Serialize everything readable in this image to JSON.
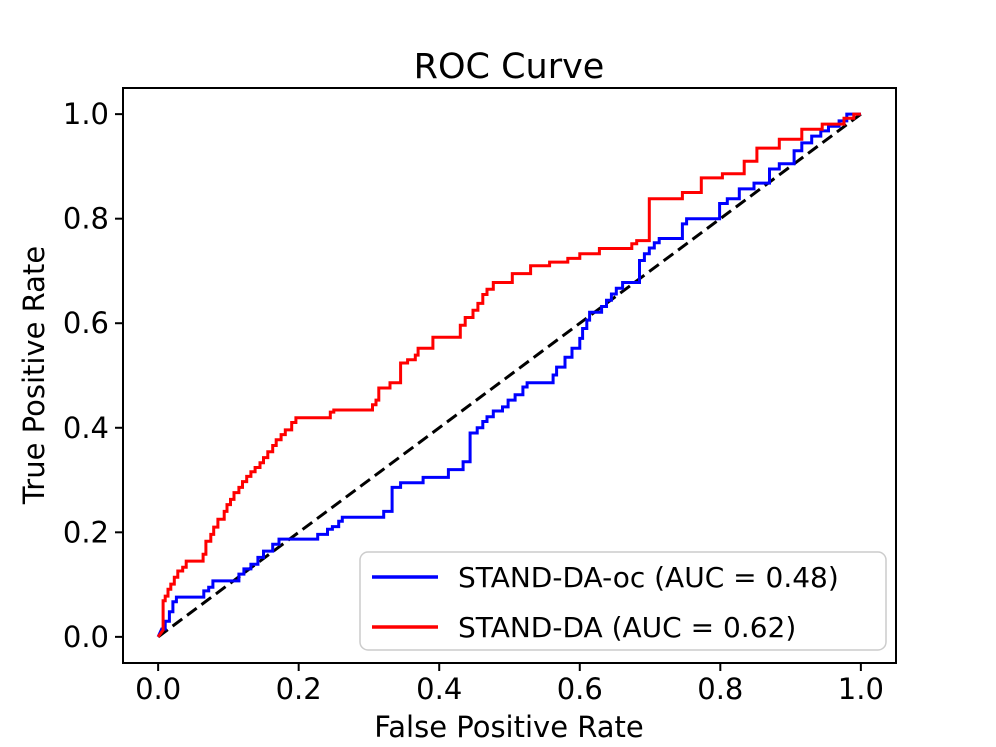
{
  "chart_data": {
    "type": "line",
    "title": "ROC Curve",
    "xlabel": "False Positive Rate",
    "ylabel": "True Positive Rate",
    "xlim": [
      -0.05,
      1.05
    ],
    "ylim": [
      -0.05,
      1.05
    ],
    "grid": false,
    "legend_position": "lower right",
    "xticks": [
      "0.0",
      "0.2",
      "0.4",
      "0.6",
      "0.8",
      "1.0"
    ],
    "xtick_values": [
      0.0,
      0.2,
      0.4,
      0.6,
      0.8,
      1.0
    ],
    "yticks": [
      "0.0",
      "0.2",
      "0.4",
      "0.6",
      "0.8",
      "1.0"
    ],
    "ytick_values": [
      0.0,
      0.2,
      0.4,
      0.6,
      0.8,
      1.0
    ],
    "reference_line": {
      "name": "chance-diagonal",
      "color": "#000000",
      "style": "dashed",
      "points": [
        [
          0,
          0
        ],
        [
          1,
          1
        ]
      ]
    },
    "series": [
      {
        "name": "STAND-DA-oc",
        "label": "STAND-DA-oc (AUC = 0.48)",
        "auc": 0.48,
        "color": "#0000ff",
        "points": [
          [
            0.0,
            0.0
          ],
          [
            0.005,
            0.015
          ],
          [
            0.01,
            0.015
          ],
          [
            0.01,
            0.03
          ],
          [
            0.016,
            0.03
          ],
          [
            0.016,
            0.048
          ],
          [
            0.021,
            0.048
          ],
          [
            0.021,
            0.067
          ],
          [
            0.026,
            0.067
          ],
          [
            0.026,
            0.076
          ],
          [
            0.065,
            0.076
          ],
          [
            0.065,
            0.088
          ],
          [
            0.072,
            0.088
          ],
          [
            0.072,
            0.095
          ],
          [
            0.078,
            0.095
          ],
          [
            0.078,
            0.107
          ],
          [
            0.115,
            0.107
          ],
          [
            0.115,
            0.12
          ],
          [
            0.122,
            0.12
          ],
          [
            0.122,
            0.13
          ],
          [
            0.132,
            0.13
          ],
          [
            0.132,
            0.139
          ],
          [
            0.142,
            0.139
          ],
          [
            0.142,
            0.152
          ],
          [
            0.15,
            0.152
          ],
          [
            0.15,
            0.164
          ],
          [
            0.163,
            0.164
          ],
          [
            0.163,
            0.177
          ],
          [
            0.172,
            0.177
          ],
          [
            0.172,
            0.187
          ],
          [
            0.227,
            0.187
          ],
          [
            0.227,
            0.196
          ],
          [
            0.241,
            0.196
          ],
          [
            0.241,
            0.206
          ],
          [
            0.248,
            0.206
          ],
          [
            0.248,
            0.211
          ],
          [
            0.257,
            0.211
          ],
          [
            0.257,
            0.221
          ],
          [
            0.262,
            0.221
          ],
          [
            0.262,
            0.229
          ],
          [
            0.321,
            0.229
          ],
          [
            0.321,
            0.24
          ],
          [
            0.333,
            0.24
          ],
          [
            0.333,
            0.286
          ],
          [
            0.345,
            0.286
          ],
          [
            0.345,
            0.295
          ],
          [
            0.377,
            0.295
          ],
          [
            0.377,
            0.305
          ],
          [
            0.413,
            0.305
          ],
          [
            0.413,
            0.32
          ],
          [
            0.434,
            0.32
          ],
          [
            0.434,
            0.335
          ],
          [
            0.444,
            0.335
          ],
          [
            0.444,
            0.39
          ],
          [
            0.454,
            0.39
          ],
          [
            0.454,
            0.4
          ],
          [
            0.462,
            0.4
          ],
          [
            0.462,
            0.412
          ],
          [
            0.468,
            0.412
          ],
          [
            0.468,
            0.421
          ],
          [
            0.477,
            0.421
          ],
          [
            0.477,
            0.432
          ],
          [
            0.49,
            0.432
          ],
          [
            0.49,
            0.44
          ],
          [
            0.498,
            0.44
          ],
          [
            0.498,
            0.453
          ],
          [
            0.508,
            0.453
          ],
          [
            0.508,
            0.463
          ],
          [
            0.519,
            0.463
          ],
          [
            0.519,
            0.478
          ],
          [
            0.525,
            0.478
          ],
          [
            0.525,
            0.486
          ],
          [
            0.562,
            0.486
          ],
          [
            0.562,
            0.501
          ],
          [
            0.567,
            0.501
          ],
          [
            0.567,
            0.516
          ],
          [
            0.579,
            0.516
          ],
          [
            0.579,
            0.535
          ],
          [
            0.589,
            0.535
          ],
          [
            0.589,
            0.552
          ],
          [
            0.6,
            0.552
          ],
          [
            0.6,
            0.571
          ],
          [
            0.604,
            0.571
          ],
          [
            0.604,
            0.59
          ],
          [
            0.61,
            0.59
          ],
          [
            0.61,
            0.606
          ],
          [
            0.614,
            0.606
          ],
          [
            0.614,
            0.621
          ],
          [
            0.631,
            0.621
          ],
          [
            0.631,
            0.632
          ],
          [
            0.638,
            0.632
          ],
          [
            0.638,
            0.644
          ],
          [
            0.645,
            0.644
          ],
          [
            0.645,
            0.656
          ],
          [
            0.652,
            0.656
          ],
          [
            0.652,
            0.667
          ],
          [
            0.661,
            0.667
          ],
          [
            0.661,
            0.678
          ],
          [
            0.685,
            0.678
          ],
          [
            0.685,
            0.72
          ],
          [
            0.692,
            0.72
          ],
          [
            0.692,
            0.733
          ],
          [
            0.699,
            0.733
          ],
          [
            0.699,
            0.744
          ],
          [
            0.706,
            0.744
          ],
          [
            0.706,
            0.754
          ],
          [
            0.713,
            0.754
          ],
          [
            0.713,
            0.762
          ],
          [
            0.746,
            0.762
          ],
          [
            0.746,
            0.79
          ],
          [
            0.752,
            0.79
          ],
          [
            0.752,
            0.8
          ],
          [
            0.799,
            0.8
          ],
          [
            0.799,
            0.829
          ],
          [
            0.81,
            0.829
          ],
          [
            0.81,
            0.838
          ],
          [
            0.827,
            0.838
          ],
          [
            0.827,
            0.857
          ],
          [
            0.848,
            0.857
          ],
          [
            0.848,
            0.868
          ],
          [
            0.87,
            0.868
          ],
          [
            0.87,
            0.895
          ],
          [
            0.884,
            0.895
          ],
          [
            0.884,
            0.905
          ],
          [
            0.905,
            0.905
          ],
          [
            0.905,
            0.93
          ],
          [
            0.916,
            0.93
          ],
          [
            0.916,
            0.945
          ],
          [
            0.93,
            0.945
          ],
          [
            0.93,
            0.958
          ],
          [
            0.943,
            0.958
          ],
          [
            0.943,
            0.968
          ],
          [
            0.954,
            0.968
          ],
          [
            0.954,
            0.977
          ],
          [
            0.969,
            0.977
          ],
          [
            0.969,
            0.987
          ],
          [
            0.98,
            0.987
          ],
          [
            0.98,
            1.0
          ],
          [
            1.0,
            1.0
          ]
        ]
      },
      {
        "name": "STAND-DA",
        "label": "STAND-DA (AUC = 0.62)",
        "auc": 0.62,
        "color": "#ff0000",
        "points": [
          [
            0.0,
            0.0
          ],
          [
            0.007,
            0.013
          ],
          [
            0.007,
            0.069
          ],
          [
            0.01,
            0.069
          ],
          [
            0.01,
            0.078
          ],
          [
            0.014,
            0.078
          ],
          [
            0.014,
            0.091
          ],
          [
            0.018,
            0.091
          ],
          [
            0.018,
            0.101
          ],
          [
            0.023,
            0.101
          ],
          [
            0.023,
            0.114
          ],
          [
            0.028,
            0.114
          ],
          [
            0.028,
            0.126
          ],
          [
            0.035,
            0.126
          ],
          [
            0.035,
            0.133
          ],
          [
            0.04,
            0.133
          ],
          [
            0.04,
            0.145
          ],
          [
            0.064,
            0.145
          ],
          [
            0.064,
            0.158
          ],
          [
            0.068,
            0.158
          ],
          [
            0.068,
            0.183
          ],
          [
            0.075,
            0.183
          ],
          [
            0.075,
            0.196
          ],
          [
            0.079,
            0.196
          ],
          [
            0.079,
            0.21
          ],
          [
            0.085,
            0.21
          ],
          [
            0.085,
            0.225
          ],
          [
            0.094,
            0.225
          ],
          [
            0.094,
            0.24
          ],
          [
            0.098,
            0.24
          ],
          [
            0.098,
            0.253
          ],
          [
            0.103,
            0.253
          ],
          [
            0.103,
            0.263
          ],
          [
            0.108,
            0.263
          ],
          [
            0.108,
            0.276
          ],
          [
            0.115,
            0.276
          ],
          [
            0.115,
            0.286
          ],
          [
            0.12,
            0.286
          ],
          [
            0.12,
            0.297
          ],
          [
            0.126,
            0.297
          ],
          [
            0.126,
            0.307
          ],
          [
            0.132,
            0.307
          ],
          [
            0.132,
            0.316
          ],
          [
            0.138,
            0.316
          ],
          [
            0.138,
            0.324
          ],
          [
            0.145,
            0.324
          ],
          [
            0.145,
            0.333
          ],
          [
            0.15,
            0.333
          ],
          [
            0.15,
            0.343
          ],
          [
            0.156,
            0.343
          ],
          [
            0.156,
            0.354
          ],
          [
            0.163,
            0.354
          ],
          [
            0.163,
            0.366
          ],
          [
            0.168,
            0.366
          ],
          [
            0.168,
            0.377
          ],
          [
            0.175,
            0.377
          ],
          [
            0.175,
            0.387
          ],
          [
            0.181,
            0.387
          ],
          [
            0.181,
            0.396
          ],
          [
            0.19,
            0.396
          ],
          [
            0.19,
            0.41
          ],
          [
            0.196,
            0.41
          ],
          [
            0.196,
            0.419
          ],
          [
            0.245,
            0.419
          ],
          [
            0.245,
            0.43
          ],
          [
            0.25,
            0.43
          ],
          [
            0.25,
            0.434
          ],
          [
            0.305,
            0.434
          ],
          [
            0.305,
            0.444
          ],
          [
            0.31,
            0.444
          ],
          [
            0.31,
            0.453
          ],
          [
            0.314,
            0.453
          ],
          [
            0.314,
            0.476
          ],
          [
            0.33,
            0.476
          ],
          [
            0.33,
            0.486
          ],
          [
            0.345,
            0.486
          ],
          [
            0.345,
            0.524
          ],
          [
            0.355,
            0.524
          ],
          [
            0.355,
            0.53
          ],
          [
            0.366,
            0.53
          ],
          [
            0.366,
            0.539
          ],
          [
            0.37,
            0.539
          ],
          [
            0.37,
            0.552
          ],
          [
            0.391,
            0.552
          ],
          [
            0.391,
            0.573
          ],
          [
            0.43,
            0.573
          ],
          [
            0.43,
            0.596
          ],
          [
            0.437,
            0.596
          ],
          [
            0.437,
            0.611
          ],
          [
            0.448,
            0.611
          ],
          [
            0.448,
            0.625
          ],
          [
            0.455,
            0.625
          ],
          [
            0.455,
            0.638
          ],
          [
            0.462,
            0.638
          ],
          [
            0.462,
            0.655
          ],
          [
            0.468,
            0.655
          ],
          [
            0.468,
            0.665
          ],
          [
            0.477,
            0.665
          ],
          [
            0.477,
            0.678
          ],
          [
            0.504,
            0.678
          ],
          [
            0.504,
            0.695
          ],
          [
            0.53,
            0.695
          ],
          [
            0.53,
            0.71
          ],
          [
            0.557,
            0.71
          ],
          [
            0.557,
            0.717
          ],
          [
            0.583,
            0.717
          ],
          [
            0.583,
            0.724
          ],
          [
            0.6,
            0.724
          ],
          [
            0.6,
            0.733
          ],
          [
            0.628,
            0.733
          ],
          [
            0.628,
            0.743
          ],
          [
            0.674,
            0.743
          ],
          [
            0.674,
            0.752
          ],
          [
            0.681,
            0.752
          ],
          [
            0.681,
            0.758
          ],
          [
            0.699,
            0.758
          ],
          [
            0.699,
            0.838
          ],
          [
            0.746,
            0.838
          ],
          [
            0.746,
            0.85
          ],
          [
            0.773,
            0.85
          ],
          [
            0.773,
            0.878
          ],
          [
            0.803,
            0.878
          ],
          [
            0.803,
            0.886
          ],
          [
            0.834,
            0.886
          ],
          [
            0.834,
            0.91
          ],
          [
            0.852,
            0.91
          ],
          [
            0.852,
            0.935
          ],
          [
            0.884,
            0.935
          ],
          [
            0.884,
            0.952
          ],
          [
            0.916,
            0.952
          ],
          [
            0.916,
            0.971
          ],
          [
            0.945,
            0.971
          ],
          [
            0.945,
            0.981
          ],
          [
            0.976,
            0.981
          ],
          [
            0.976,
            0.992
          ],
          [
            0.99,
            0.992
          ],
          [
            0.99,
            1.0
          ],
          [
            1.0,
            1.0
          ]
        ]
      }
    ]
  }
}
